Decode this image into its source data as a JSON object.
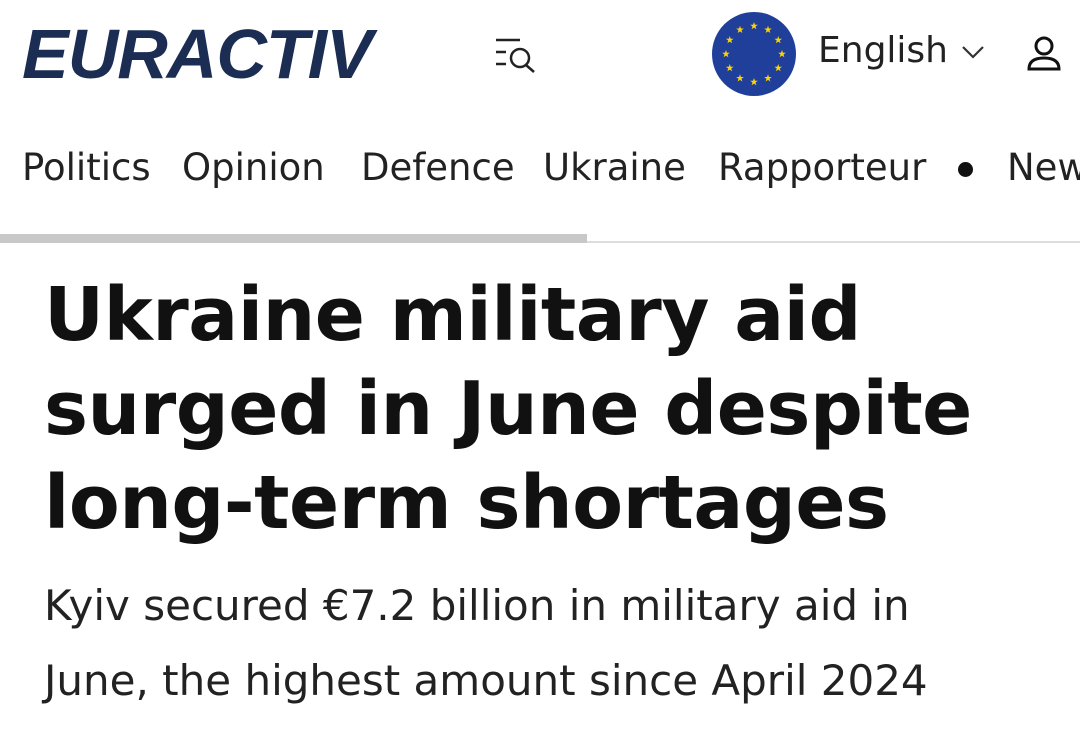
{
  "header": {
    "logo": "EURACTIV",
    "language": "English"
  },
  "nav": [
    "Politics",
    "Opinion",
    "Defence",
    "Ukraine",
    "Rapporteur",
    "New"
  ],
  "article": {
    "headline": [
      "Ukraine military aid",
      "surged in June despite",
      "long-term shortages"
    ],
    "subheading": [
      "Kyiv secured €7.2 billion in military aid in",
      "June, the highest amount since April 2024"
    ]
  }
}
